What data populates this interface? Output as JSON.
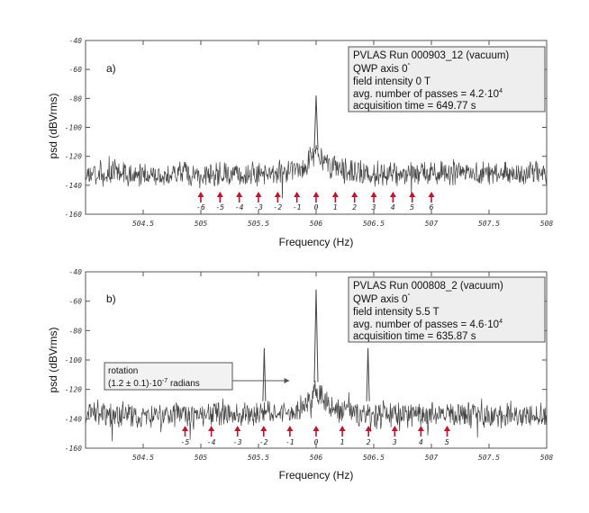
{
  "chart_data": [
    {
      "type": "line",
      "panel_label": "a)",
      "xlabel": "Frequency (Hz)",
      "ylabel": "psd (dBVrms)",
      "xlim": [
        504,
        508
      ],
      "ylim": [
        -160,
        -40
      ],
      "xticks": [
        504.5,
        505,
        505.5,
        506,
        506.5,
        507,
        507.5,
        508
      ],
      "xtick_labels": [
        "504.5",
        "505",
        "505.5",
        "506",
        "506.5",
        "507",
        "507.5",
        "508"
      ],
      "yticks": [
        -160,
        -140,
        -120,
        -100,
        -80,
        -60,
        -40
      ],
      "ytick_labels": [
        "-160",
        "-140",
        "-120",
        "-100",
        "-80",
        "-60",
        "-40"
      ],
      "legend": {
        "title": "PVLAS Run 000903_12 (vacuum)",
        "qwp_text": "QWP axis 0",
        "qwp_sup": "°",
        "field_text": "field intensity 0 T",
        "passes_text": "avg. number of passes = 4.2·10",
        "passes_sup": "4",
        "acq_text": "acquisition time = 649.77 s"
      },
      "noise_floor_db": -132,
      "center_peak": {
        "x": 506.0,
        "y": -78
      },
      "side_peaks": [],
      "harmonic_markers": {
        "spacing_hz": 0.1667,
        "orders": [
          -6,
          -5,
          -4,
          -3,
          -2,
          -1,
          0,
          1,
          2,
          3,
          4,
          5,
          6
        ],
        "labels": [
          "-6",
          "-5",
          "-4",
          "-3",
          "-2",
          "-1",
          "0",
          "1",
          "2",
          "3",
          "4",
          "5",
          "6"
        ],
        "arrow_color": "#c0142a"
      }
    },
    {
      "type": "line",
      "panel_label": "b)",
      "xlabel": "Frequency (Hz)",
      "ylabel": "psd (dBVrms)",
      "xlim": [
        504,
        508
      ],
      "ylim": [
        -160,
        -40
      ],
      "xticks": [
        504.5,
        505,
        505.5,
        506,
        506.5,
        507,
        507.5,
        508
      ],
      "xtick_labels": [
        "504.5",
        "505",
        "505.5",
        "506",
        "506.5",
        "507",
        "507.5",
        "508"
      ],
      "yticks": [
        -160,
        -140,
        -120,
        -100,
        -80,
        -60,
        -40
      ],
      "ytick_labels": [
        "-160",
        "-140",
        "-120",
        "-100",
        "-80",
        "-60",
        "-40"
      ],
      "legend": {
        "title": "PVLAS Run 000808_2 (vacuum)",
        "qwp_text": "QWP axis 0",
        "qwp_sup": "°",
        "field_text": "field intensity 5.5 T",
        "passes_text": "avg. number of passes = 4.6·10",
        "passes_sup": "4",
        "acq_text": "acquisition time = 635.87 s"
      },
      "noise_floor_db": -137,
      "center_peak": {
        "x": 506.0,
        "y": -52
      },
      "side_peaks": [
        {
          "x": 505.55,
          "y": -92
        },
        {
          "x": 506.45,
          "y": -92
        }
      ],
      "annotation": {
        "line1": "rotation",
        "line2": "(1.2 ± 0.1)·10",
        "line2_sup": "-7",
        "line2_end": " radians",
        "target_x": 505.77
      },
      "harmonic_markers": {
        "spacing_hz": 0.2273,
        "orders": [
          -5,
          -4,
          -3,
          -2,
          -1,
          0,
          1,
          2,
          3,
          4,
          5
        ],
        "labels": [
          "-5",
          "-4",
          "-3",
          "-2",
          "-1",
          "0",
          "1",
          "2",
          "3",
          "4",
          "5"
        ],
        "arrow_color": "#c0142a"
      }
    }
  ]
}
